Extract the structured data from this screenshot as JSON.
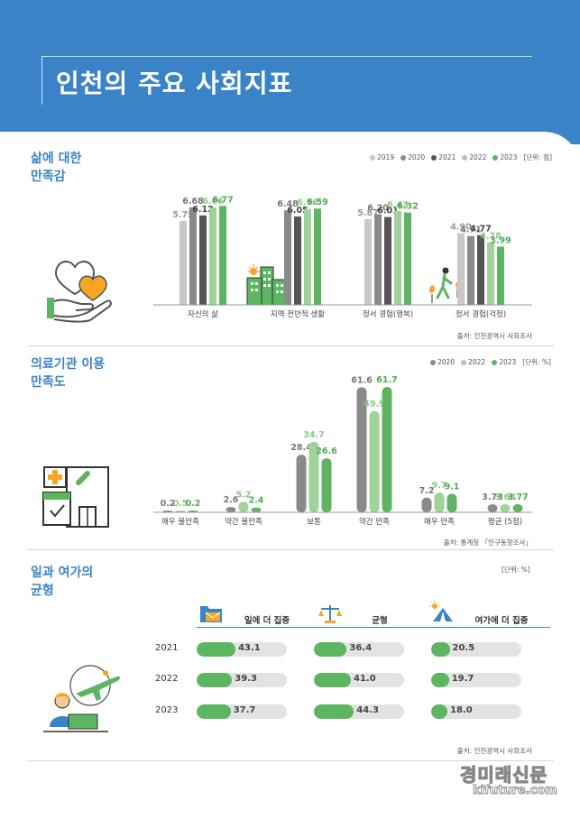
{
  "header": {
    "title": "인천의 주요 사회지표"
  },
  "colors": {
    "y2019": "#c8c8c8",
    "y2020": "#8a8a8a",
    "y2021": "#555555",
    "y2022": "#9fd39a",
    "y2023": "#5db562",
    "accent": "#3a83c7"
  },
  "section1": {
    "title_line1": "삶에 대한",
    "title_line2": "만족감",
    "unit": "[단위: 점]",
    "legend": [
      "2019",
      "2020",
      "2021",
      "2022",
      "2023"
    ],
    "source": "출처: 인천광역시 사회조사"
  },
  "section2": {
    "title_line1": "의료기관 이용",
    "title_line2": "만족도",
    "unit": "[단위: %]",
    "legend": [
      "2020",
      "2022",
      "2023"
    ],
    "source": "출처: 통계청 「인구동향조사」"
  },
  "section3": {
    "title_line1": "일과 여가의",
    "title_line2": "균형",
    "unit": "[단위: %]",
    "source": "출처: 인천광역시 사회조사",
    "headers": [
      "일에 더 집중",
      "균형",
      "여가에 더 집중"
    ],
    "years": [
      "2021",
      "2022",
      "2023"
    ]
  },
  "watermark": {
    "main": "경미래신문",
    "sub": "kifuture.com"
  },
  "chart_data": [
    {
      "type": "bar",
      "categories": [
        "자신의 삶",
        "지역 전반적 생활",
        "정서 경험(행복)",
        "정서 경험(걱정)"
      ],
      "series": [
        {
          "name": "2019",
          "values": [
            5.75,
            null,
            5.87,
            4.9
          ]
        },
        {
          "name": "2020",
          "values": [
            6.68,
            6.48,
            6.2,
            4.71
          ]
        },
        {
          "name": "2021",
          "values": [
            6.12,
            6.05,
            6.01,
            4.77
          ]
        },
        {
          "name": "2022",
          "values": [
            6.66,
            6.56,
            6.43,
            4.28
          ]
        },
        {
          "name": "2023",
          "values": [
            6.77,
            6.59,
            6.32,
            3.99
          ]
        }
      ],
      "ylim": [
        0,
        7.2
      ]
    },
    {
      "type": "bar",
      "categories": [
        "매우 불만족",
        "약간 불만족",
        "보통",
        "약간 만족",
        "매우 만족",
        "평균 (5점)"
      ],
      "series": [
        {
          "name": "2020",
          "values": [
            0.2,
            2.6,
            28.4,
            61.6,
            7.2,
            3.73
          ]
        },
        {
          "name": "2022",
          "values": [
            0.5,
            5.2,
            34.7,
            49.9,
            9.7,
            3.63
          ]
        },
        {
          "name": "2023",
          "values": [
            0.2,
            2.4,
            26.6,
            61.7,
            9.1,
            3.77
          ]
        }
      ],
      "ylim": [
        0,
        70
      ]
    },
    {
      "type": "table",
      "columns": [
        "일에 더 집중",
        "균형",
        "여가에 더 집중"
      ],
      "rows": [
        {
          "year": "2021",
          "values": [
            43.1,
            36.4,
            20.5
          ]
        },
        {
          "year": "2022",
          "values": [
            39.3,
            41.0,
            19.7
          ]
        },
        {
          "year": "2023",
          "values": [
            37.7,
            44.3,
            18.0
          ]
        }
      ]
    }
  ]
}
